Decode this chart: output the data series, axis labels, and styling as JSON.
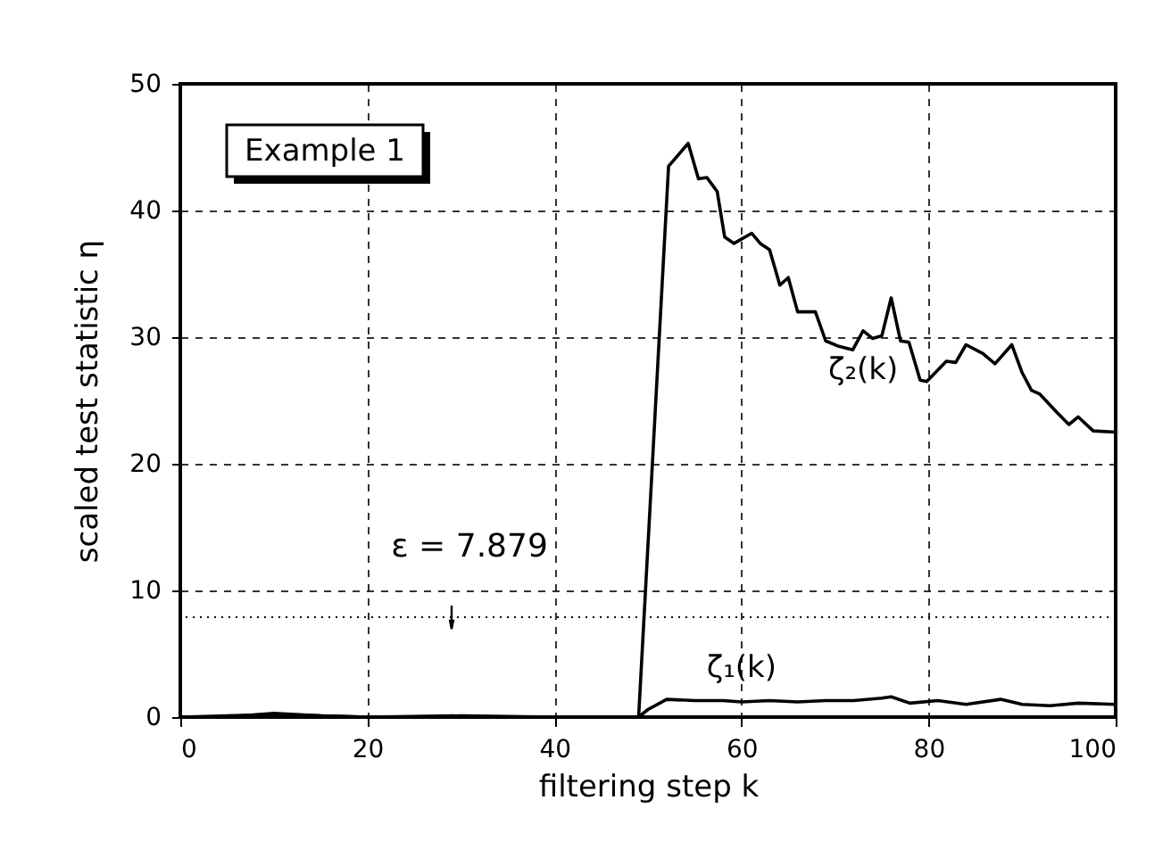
{
  "chart_data": {
    "type": "line",
    "xlabel": "filtering step k",
    "ylabel": "scaled test statistic η",
    "annotations": [
      "Example 1",
      "ε = 7.879"
    ],
    "series": [
      {
        "name": "ζ₂(k)",
        "color": "#000000",
        "x": [
          0,
          10,
          20,
          30,
          40,
          49,
          52.2,
          54.3,
          55.4,
          56.3,
          57.4,
          58.2,
          59.2,
          61.1,
          62,
          63,
          64.1,
          65,
          66,
          67.9,
          69,
          70.3,
          71.9,
          73,
          74,
          75,
          76,
          77,
          77.9,
          79.1,
          79.8,
          81.9,
          82.9,
          84,
          85.8,
          87.1,
          88.9,
          90,
          91,
          91.9,
          93.8,
          95,
          96,
          97.6,
          100
        ],
        "values": [
          0,
          0.2,
          0,
          0,
          0,
          0,
          43.5,
          45.3,
          42.5,
          42.6,
          41.5,
          37.9,
          37.4,
          38.2,
          37.4,
          36.9,
          34.1,
          34.7,
          32,
          32,
          29.7,
          29.3,
          29,
          30.5,
          29.9,
          30.1,
          33.1,
          29.7,
          29.6,
          26.6,
          26.5,
          28.1,
          28,
          29.4,
          28.7,
          27.9,
          29.4,
          27.2,
          25.8,
          25.5,
          24,
          23.1,
          23.7,
          22.6,
          22.5
        ]
      },
      {
        "name": "ζ₁(k)",
        "color": "#000000",
        "x": [
          0,
          5,
          10,
          15,
          20,
          30,
          40,
          49,
          50,
          52,
          55,
          58,
          60,
          63,
          66,
          69,
          72,
          75,
          76,
          78,
          81,
          84,
          87.7,
          90,
          93,
          96,
          100
        ],
        "values": [
          0,
          0,
          0.3,
          0.1,
          0,
          0.1,
          0,
          0,
          0.6,
          1.4,
          1.3,
          1.3,
          1.2,
          1.3,
          1.2,
          1.3,
          1.3,
          1.5,
          1.6,
          1.1,
          1.3,
          1.0,
          1.4,
          1.0,
          0.9,
          1.1,
          1.0
        ]
      }
    ],
    "xlim": [
      0,
      100
    ],
    "xticks": [
      0,
      20,
      40,
      60,
      80,
      100
    ],
    "ylim": [
      0,
      50
    ],
    "yticks": [
      0,
      10,
      20,
      30,
      40,
      50
    ],
    "ref_lines": [
      {
        "axis": "y",
        "value": 7.879,
        "line_style": "dotted",
        "color": "#000000"
      }
    ],
    "grid": true,
    "legend": false,
    "line_style": "solid",
    "marker": "none"
  }
}
